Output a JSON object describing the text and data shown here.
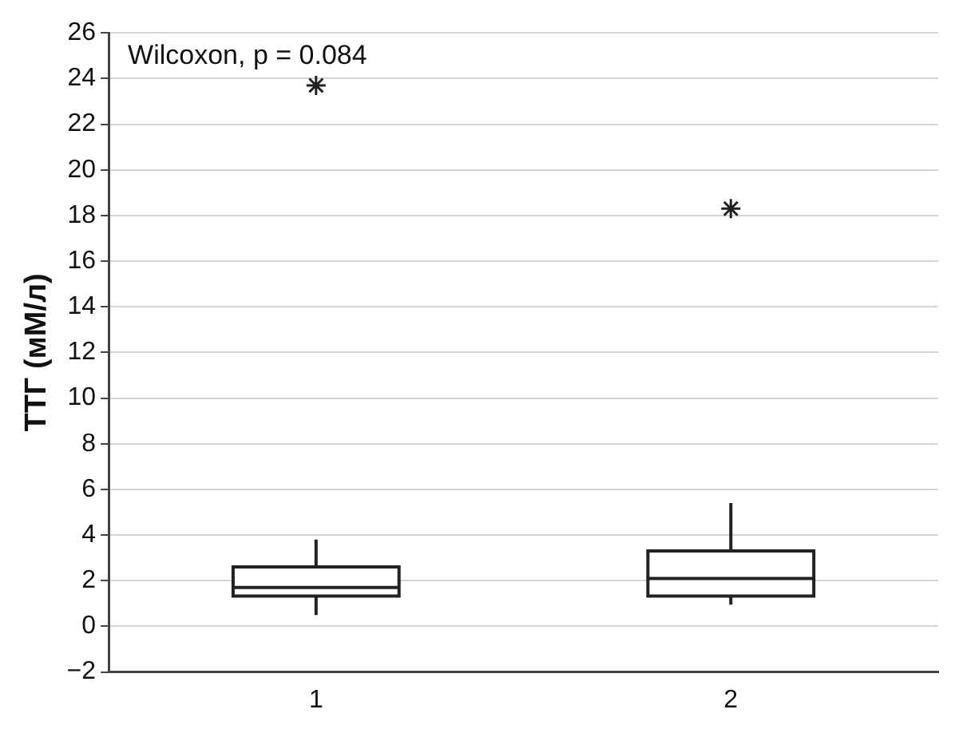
{
  "chart_data": {
    "type": "box",
    "ylabel": "ТТГ (мМ/л)",
    "categories": [
      "1",
      "2"
    ],
    "boxes": [
      {
        "low": 0.5,
        "q1": 1.33,
        "median": 1.7,
        "q3": 2.6,
        "high": 3.8,
        "outliers": [
          23.7
        ]
      },
      {
        "low": 0.95,
        "q1": 1.33,
        "median": 2.1,
        "q3": 3.3,
        "high": 5.4,
        "outliers": [
          18.3
        ]
      }
    ],
    "ylim": [
      -2,
      26
    ],
    "yticks": [
      -2,
      0,
      2,
      4,
      6,
      8,
      10,
      12,
      14,
      16,
      18,
      20,
      22,
      24,
      26
    ],
    "grid": "y",
    "annotations": [
      "Wilcoxon, p = 0.084"
    ]
  }
}
